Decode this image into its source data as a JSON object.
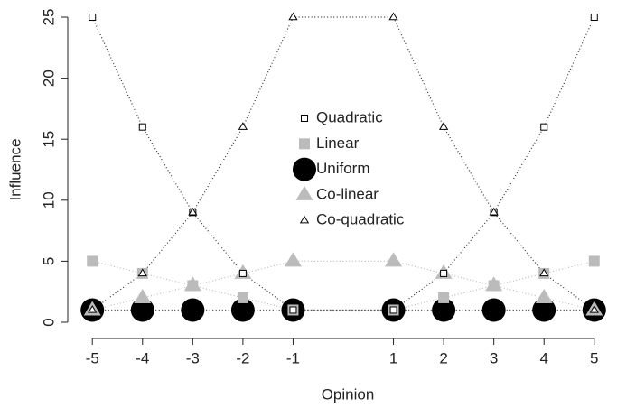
{
  "chart_data": {
    "type": "line",
    "x_label": "Opinion",
    "y_label": "Influence",
    "x": [
      -5,
      -4,
      -3,
      -2,
      -1,
      1,
      2,
      3,
      4,
      5
    ],
    "xlim": [
      -5.4,
      5.4
    ],
    "xticks": [
      -5,
      -4,
      -3,
      -2,
      -1,
      1,
      2,
      3,
      4,
      5
    ],
    "ylim": [
      -1,
      26
    ],
    "yticks": [
      0,
      5,
      10,
      15,
      20,
      25
    ],
    "series": [
      {
        "name": "Quadratic",
        "color": "#000000",
        "marker": "square-open",
        "values": [
          25,
          16,
          9,
          4,
          1,
          1,
          4,
          9,
          16,
          25
        ]
      },
      {
        "name": "Linear",
        "color": "#bbbbbb",
        "marker": "square-filled",
        "values": [
          5,
          4,
          3,
          2,
          1,
          1,
          2,
          3,
          4,
          5
        ]
      },
      {
        "name": "Uniform",
        "color": "#000000",
        "marker": "circle-filled",
        "values": [
          1,
          1,
          1,
          1,
          1,
          1,
          1,
          1,
          1,
          1
        ]
      },
      {
        "name": "Co-linear",
        "color": "#bbbbbb",
        "marker": "triangle-filled",
        "values": [
          1,
          2,
          3,
          4,
          5,
          5,
          4,
          3,
          2,
          1
        ]
      },
      {
        "name": "Co-quadratic",
        "color": "#000000",
        "marker": "triangle-open",
        "values": [
          1,
          4,
          9,
          16,
          25,
          25,
          16,
          9,
          4,
          1
        ]
      }
    ]
  }
}
